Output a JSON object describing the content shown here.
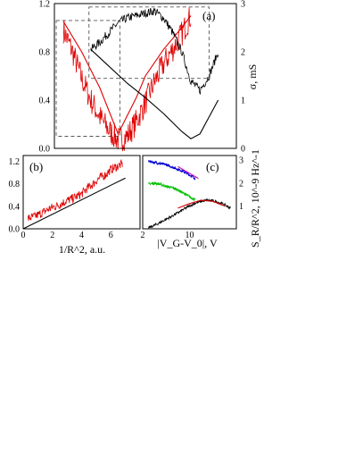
{
  "chart_data": [
    {
      "panel": "(a)",
      "type": "line",
      "y_left_label": "S_R/R^2, 10^-9 Hz^-1",
      "y_left_ticks": [
        "0.0",
        "0.4",
        "0.8",
        "1.2"
      ],
      "y_left_lim": [
        0,
        1.2
      ],
      "y_right_label": "σ, mS",
      "y_right_ticks": [
        "0",
        "1",
        "2",
        "3"
      ],
      "y_right_lim": [
        0,
        3
      ],
      "x_lim": [
        0,
        20
      ],
      "series": [
        {
          "color": "#e00000",
          "style": "noisy",
          "axis": "left",
          "x": [
            1,
            2,
            3,
            4,
            5,
            6,
            7,
            8,
            9,
            10,
            11,
            12,
            13,
            14,
            15
          ],
          "y": [
            0.98,
            0.8,
            0.58,
            0.4,
            0.26,
            0.15,
            0.07,
            0.1,
            0.22,
            0.38,
            0.55,
            0.7,
            0.82,
            0.95,
            1.1
          ]
        },
        {
          "color": "#e00000",
          "style": "smooth",
          "axis": "left",
          "x": [
            1,
            3,
            5,
            7,
            9,
            10,
            12,
            14,
            15
          ],
          "y": [
            1.05,
            0.8,
            0.5,
            0.12,
            0.42,
            0.6,
            0.82,
            1.0,
            1.1
          ]
        },
        {
          "color": "#000000",
          "style": "noisy",
          "axis": "right",
          "x": [
            4,
            5,
            6,
            7,
            8,
            9,
            10,
            11,
            12,
            13,
            14,
            15,
            16,
            17,
            18
          ],
          "y": [
            2.05,
            2.2,
            2.4,
            2.6,
            2.7,
            2.75,
            2.8,
            2.85,
            2.7,
            2.4,
            2.0,
            1.4,
            1.2,
            1.5,
            2.0
          ]
        },
        {
          "color": "#000000",
          "style": "smooth",
          "axis": "right",
          "x": [
            4,
            6,
            8,
            10,
            12,
            14,
            15,
            16,
            17,
            18
          ],
          "y": [
            2.05,
            1.7,
            1.35,
            1.05,
            0.72,
            0.35,
            0.2,
            0.3,
            0.65,
            1.0
          ]
        }
      ],
      "inset_boxes": [
        {
          "x0": 0.2,
          "x1": 7.2,
          "y0": 0.1,
          "y1": 1.06,
          "axis": "left"
        },
        {
          "x0": 3.8,
          "x1": 17.0,
          "y0": 1.45,
          "y1": 2.93,
          "axis": "right"
        }
      ]
    },
    {
      "panel": "(b)",
      "type": "scatter",
      "xlabel": "1/R^2, a.u.",
      "x_ticks": [
        "0",
        "2",
        "4",
        "6"
      ],
      "xlim": [
        0,
        8
      ],
      "y_ticks": [
        "0.0",
        "0.4",
        "0.8",
        "1.2"
      ],
      "ylim": [
        0,
        1.3
      ],
      "series": [
        {
          "color": "#e00000",
          "style": "noisy",
          "x": [
            0.3,
            0.8,
            1.2,
            1.6,
            2.0,
            2.5,
            3.0,
            3.5,
            4.0,
            4.4,
            4.8,
            5.2,
            5.6,
            6.0,
            6.4,
            6.8
          ],
          "y": [
            0.18,
            0.22,
            0.27,
            0.33,
            0.38,
            0.43,
            0.5,
            0.55,
            0.62,
            0.72,
            0.8,
            0.9,
            0.95,
            1.05,
            1.1,
            1.15
          ]
        },
        {
          "color": "#000000",
          "style": "fit",
          "x": [
            0,
            7
          ],
          "y": [
            0.0,
            0.9
          ]
        }
      ]
    },
    {
      "panel": "(c)",
      "type": "line",
      "xlabel": "|V_G-V_0|, V",
      "x_ticks": [
        "2",
        "10"
      ],
      "xlim": [
        2,
        18
      ],
      "y_right_label": "S_R/R^2, 10^-9 Hz^-1",
      "y_right_ticks": [
        "1",
        "2",
        "3"
      ],
      "ylim": [
        0,
        3.2
      ],
      "series": [
        {
          "color": "#0000d0",
          "style": "noisy",
          "x": [
            3,
            4,
            5,
            6,
            7,
            8,
            9,
            10,
            11
          ],
          "y": [
            2.95,
            2.9,
            2.85,
            2.8,
            2.7,
            2.6,
            2.5,
            2.35,
            2.2
          ]
        },
        {
          "color": "#c000c0",
          "style": "fit",
          "x": [
            8,
            11.5
          ],
          "y": [
            2.72,
            2.2
          ]
        },
        {
          "color": "#00c000",
          "style": "noisy",
          "x": [
            3,
            4,
            5,
            6,
            7,
            8,
            9,
            10,
            11
          ],
          "y": [
            1.95,
            2.0,
            1.95,
            1.85,
            1.8,
            1.7,
            1.55,
            1.4,
            1.25
          ]
        },
        {
          "color": "#000000",
          "style": "noisy",
          "x": [
            3,
            4,
            5,
            6,
            7,
            8,
            9,
            10,
            11,
            12,
            13,
            14,
            15,
            16,
            17
          ],
          "y": [
            0.05,
            0.15,
            0.28,
            0.42,
            0.55,
            0.7,
            0.85,
            1.0,
            1.12,
            1.2,
            1.25,
            1.22,
            1.15,
            1.05,
            0.9
          ]
        },
        {
          "color": "#e00000",
          "style": "fit",
          "x": [
            8,
            10,
            12,
            14,
            16
          ],
          "y": [
            0.9,
            1.1,
            1.25,
            1.2,
            1.0
          ]
        }
      ]
    }
  ]
}
